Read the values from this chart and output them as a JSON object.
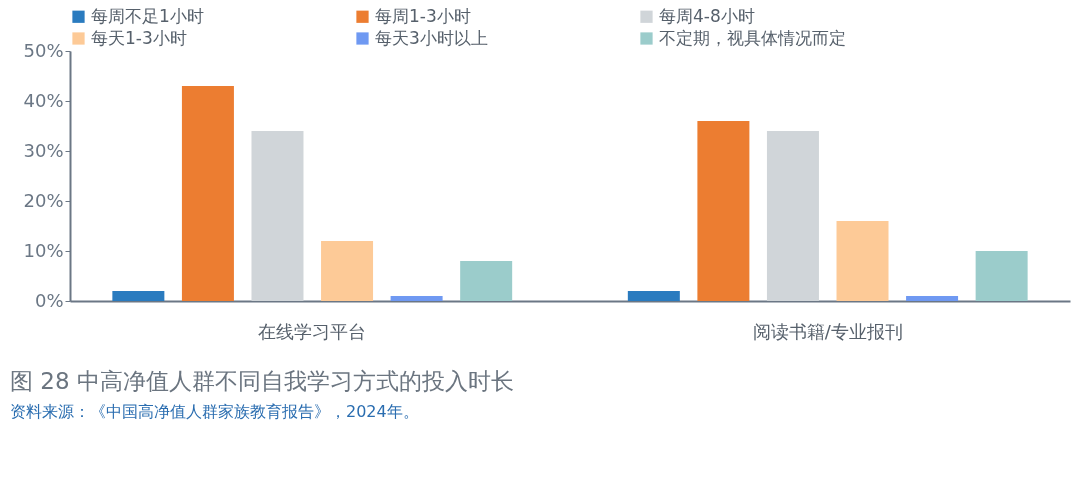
{
  "chart_data": {
    "type": "bar",
    "title": "图 28  中高净值人群不同自我学习方式的投入时长",
    "annotations": [
      "资料来源：《中国高净值人群家族教育报告》，2024年。"
    ],
    "categories": [
      "在线学习平台",
      "阅读书籍/专业报刊"
    ],
    "series": [
      {
        "name": "每周不足1小时",
        "color": "#2a7bbf",
        "values": [
          2,
          2
        ]
      },
      {
        "name": "每周1-3小时",
        "color": "#ec7d31",
        "values": [
          43,
          36
        ]
      },
      {
        "name": "每周4-8小时",
        "color": "#d0d5d9",
        "values": [
          34,
          34
        ]
      },
      {
        "name": "每天1-3小时",
        "color": "#fdca97",
        "values": [
          12,
          16
        ]
      },
      {
        "name": "每天3小时以上",
        "color": "#6f99f2",
        "values": [
          1,
          1
        ]
      },
      {
        "name": "不定期，视具体情况而定",
        "color": "#9bcccb",
        "values": [
          8,
          10
        ]
      }
    ],
    "ylim": [
      0,
      50
    ],
    "yticks": [
      {
        "value": 0,
        "label": "0%"
      },
      {
        "value": 10,
        "label": "10%"
      },
      {
        "value": 20,
        "label": "20%"
      },
      {
        "value": 30,
        "label": "30%"
      },
      {
        "value": 40,
        "label": "40%"
      },
      {
        "value": 50,
        "label": "50%"
      }
    ],
    "grid": false,
    "legend": "top"
  }
}
